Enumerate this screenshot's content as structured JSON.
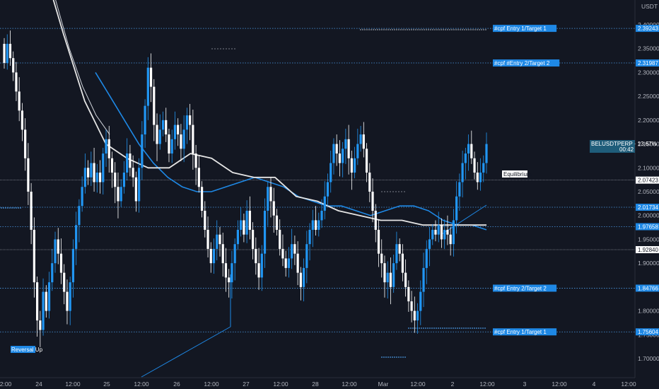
{
  "chart_data": {
    "type": "candlestick",
    "symbol_tag": "BELUSDTPERP · 13.67%",
    "countdown": "00:42",
    "currency": "USDT",
    "ylim": [
      1.68,
      2.41
    ],
    "y_ticks": [
      "2.40000",
      "2.35000",
      "2.30000",
      "2.25000",
      "2.20000",
      "2.15000",
      "2.10000",
      "2.05000",
      "2.00000",
      "1.95000",
      "1.90000",
      "1.85000",
      "1.80000",
      "1.75000",
      "1.70000"
    ],
    "x_ticks": [
      "2:00",
      "24",
      "12:00",
      "25",
      "12:00",
      "26",
      "12:00",
      "27",
      "12:00",
      "28",
      "12:00",
      "Mar",
      "12:00",
      "2",
      "12:00",
      "3",
      "12:00",
      "4",
      "12:00"
    ],
    "last_price": 2.14745,
    "closes": [
      2.32,
      2.36,
      2.33,
      2.3,
      2.26,
      2.22,
      2.18,
      2.12,
      2.05,
      1.97,
      1.86,
      1.78,
      1.76,
      1.84,
      1.8,
      1.86,
      1.9,
      1.95,
      1.92,
      1.88,
      1.84,
      1.8,
      1.86,
      1.93,
      1.98,
      2.02,
      2.06,
      2.1,
      2.08,
      2.11,
      2.07,
      2.09,
      2.07,
      2.13,
      2.16,
      2.12,
      2.09,
      2.06,
      2.03,
      2.06,
      2.09,
      2.13,
      2.1,
      2.08,
      2.03,
      2.1,
      2.17,
      2.23,
      2.31,
      2.27,
      2.19,
      2.15,
      2.18,
      2.2,
      2.17,
      2.13,
      2.16,
      2.19,
      2.17,
      2.14,
      2.18,
      2.21,
      2.19,
      2.13,
      2.1,
      2.06,
      2.01,
      1.97,
      1.93,
      1.9,
      1.93,
      1.96,
      1.94,
      1.9,
      1.87,
      1.86,
      1.9,
      1.94,
      1.97,
      1.99,
      1.96,
      2.01,
      1.97,
      1.93,
      1.9,
      1.87,
      1.92,
      2.01,
      2.06,
      2.03,
      2.0,
      1.97,
      1.93,
      1.91,
      1.89,
      1.91,
      1.94,
      1.92,
      1.88,
      1.85,
      1.89,
      1.94,
      1.97,
      1.99,
      1.97,
      1.99,
      2.01,
      2.04,
      2.07,
      2.11,
      2.15,
      2.13,
      2.11,
      2.14,
      2.16,
      2.12,
      2.09,
      2.12,
      2.15,
      2.17,
      2.14,
      2.09,
      2.05,
      2.01,
      1.97,
      1.92,
      1.9,
      1.86,
      1.88,
      1.85,
      1.9,
      1.94,
      1.92,
      1.88,
      1.85,
      1.82,
      1.8,
      1.78,
      1.8,
      1.84,
      1.89,
      1.93,
      1.95,
      1.97,
      1.96,
      1.98,
      1.95,
      1.97,
      1.96,
      1.94,
      1.99,
      2.04,
      2.07,
      2.11,
      2.13,
      2.15,
      2.12,
      2.09,
      2.07,
      2.09,
      2.11,
      2.15
    ],
    "ema_blue": [
      2.3,
      2.25,
      2.2,
      2.15,
      2.11,
      2.08,
      2.06,
      2.05,
      2.05,
      2.06,
      2.07,
      2.08,
      2.07,
      2.06,
      2.04,
      2.03,
      2.02,
      2.02,
      2.01,
      2.0,
      2.01,
      2.02,
      2.02,
      2.01,
      1.99,
      1.98,
      1.98,
      1.97
    ],
    "sma_white": [
      2.53,
      2.38,
      2.24,
      2.15,
      2.12,
      2.1,
      2.1,
      2.13,
      2.12,
      2.09,
      2.08,
      2.08,
      2.04,
      2.03,
      2.01,
      2.0,
      1.99,
      1.99,
      1.98,
      1.98,
      1.98,
      1.98
    ],
    "levels": [
      {
        "price": 2.39243,
        "label": "2.39243",
        "note": "#cpf Entry 1/Target 1"
      },
      {
        "price": 2.31987,
        "label": "2.31987",
        "note": "#cpf #Entry 2/Target 2"
      },
      {
        "price": 2.07423,
        "label": "2.07423",
        "note": "Equilibrium"
      },
      {
        "price": 2.01734,
        "label": "2.01734",
        "note": ""
      },
      {
        "price": 1.97658,
        "label": "1.97658",
        "note": ""
      },
      {
        "price": 1.9284,
        "label": "1.92840",
        "note": ""
      },
      {
        "price": 1.84766,
        "label": "1.84766",
        "note": "#cpf Entry 2/Target 2"
      },
      {
        "price": 1.75604,
        "label": "1.75604",
        "note": "#cpf Entry 1/Target 1"
      }
    ],
    "annotations": [
      {
        "text": "Reversal Up"
      },
      {
        "text": "Equilibrium"
      }
    ],
    "colors": {
      "background": "#131722",
      "up": "#2196f3",
      "down": "#ffffff",
      "ema": "#1e88e5",
      "sma": "#e6e6e6",
      "grid_dotted": "#4b9be8",
      "label_bg": "#1e88e5"
    }
  }
}
